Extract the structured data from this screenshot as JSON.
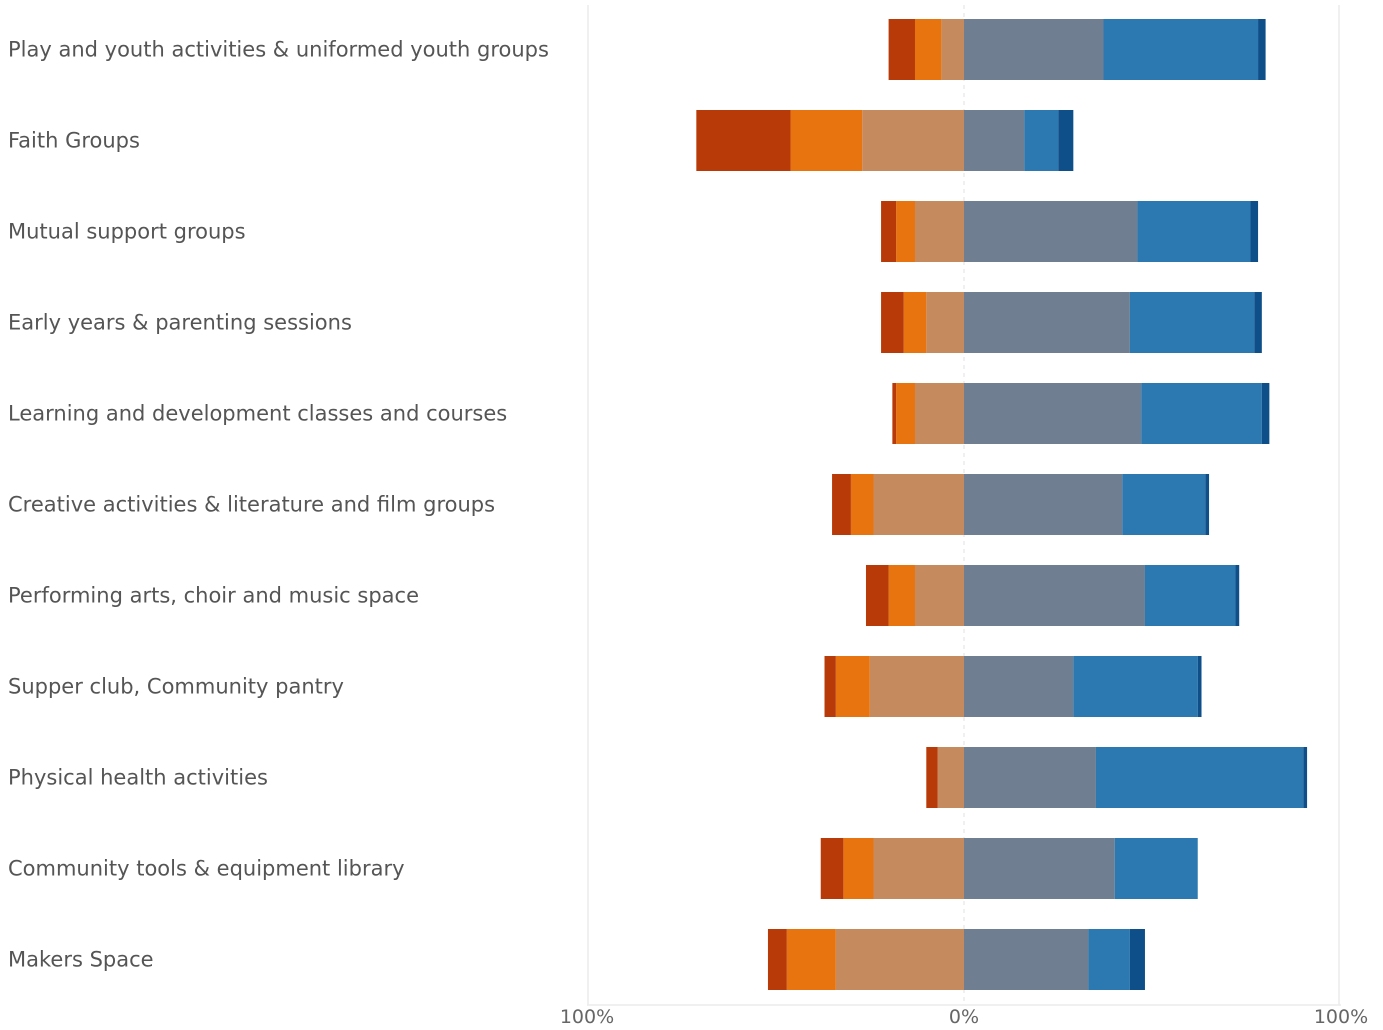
{
  "chart_data": {
    "type": "bar",
    "orientation": "horizontal",
    "stacking": "diverging",
    "categories": [
      "Play and youth activities & uniformed youth groups",
      "Faith Groups",
      "Mutual support groups",
      "Early years & parenting sessions",
      "Learning and development classes and courses",
      "Creative activities & literature and film groups",
      "Performing arts, choir and music space",
      "Supper club, Community pantry",
      "Physical health activities",
      "Community tools & equipment library",
      "Makers Space"
    ],
    "series": [
      {
        "side": "negative",
        "color": "#b83a08",
        "values": [
          7,
          25,
          4,
          6,
          1,
          5,
          6,
          3,
          3,
          6,
          5
        ]
      },
      {
        "side": "negative",
        "color": "#e8740f",
        "values": [
          7,
          19,
          5,
          6,
          5,
          6,
          7,
          9,
          0,
          8,
          13
        ]
      },
      {
        "side": "negative",
        "color": "#c58a5e",
        "values": [
          6,
          27,
          13,
          10,
          13,
          24,
          13,
          25,
          7,
          24,
          34
        ]
      },
      {
        "side": "positive",
        "color": "#6f7f91",
        "values": [
          37,
          16,
          46,
          44,
          47,
          42,
          48,
          29,
          35,
          40,
          33
        ]
      },
      {
        "side": "positive",
        "color": "#2c78b0",
        "values": [
          41,
          9,
          30,
          33,
          32,
          22,
          24,
          33,
          55,
          22,
          11
        ]
      },
      {
        "side": "positive",
        "color": "#0e4f89",
        "values": [
          2,
          4,
          2,
          2,
          2,
          1,
          1,
          1,
          1,
          0,
          4
        ]
      }
    ],
    "x_ticks": [
      "100%",
      "0%",
      "100%"
    ],
    "xlim": [
      -100,
      100
    ],
    "grid": true,
    "legend": "none"
  }
}
